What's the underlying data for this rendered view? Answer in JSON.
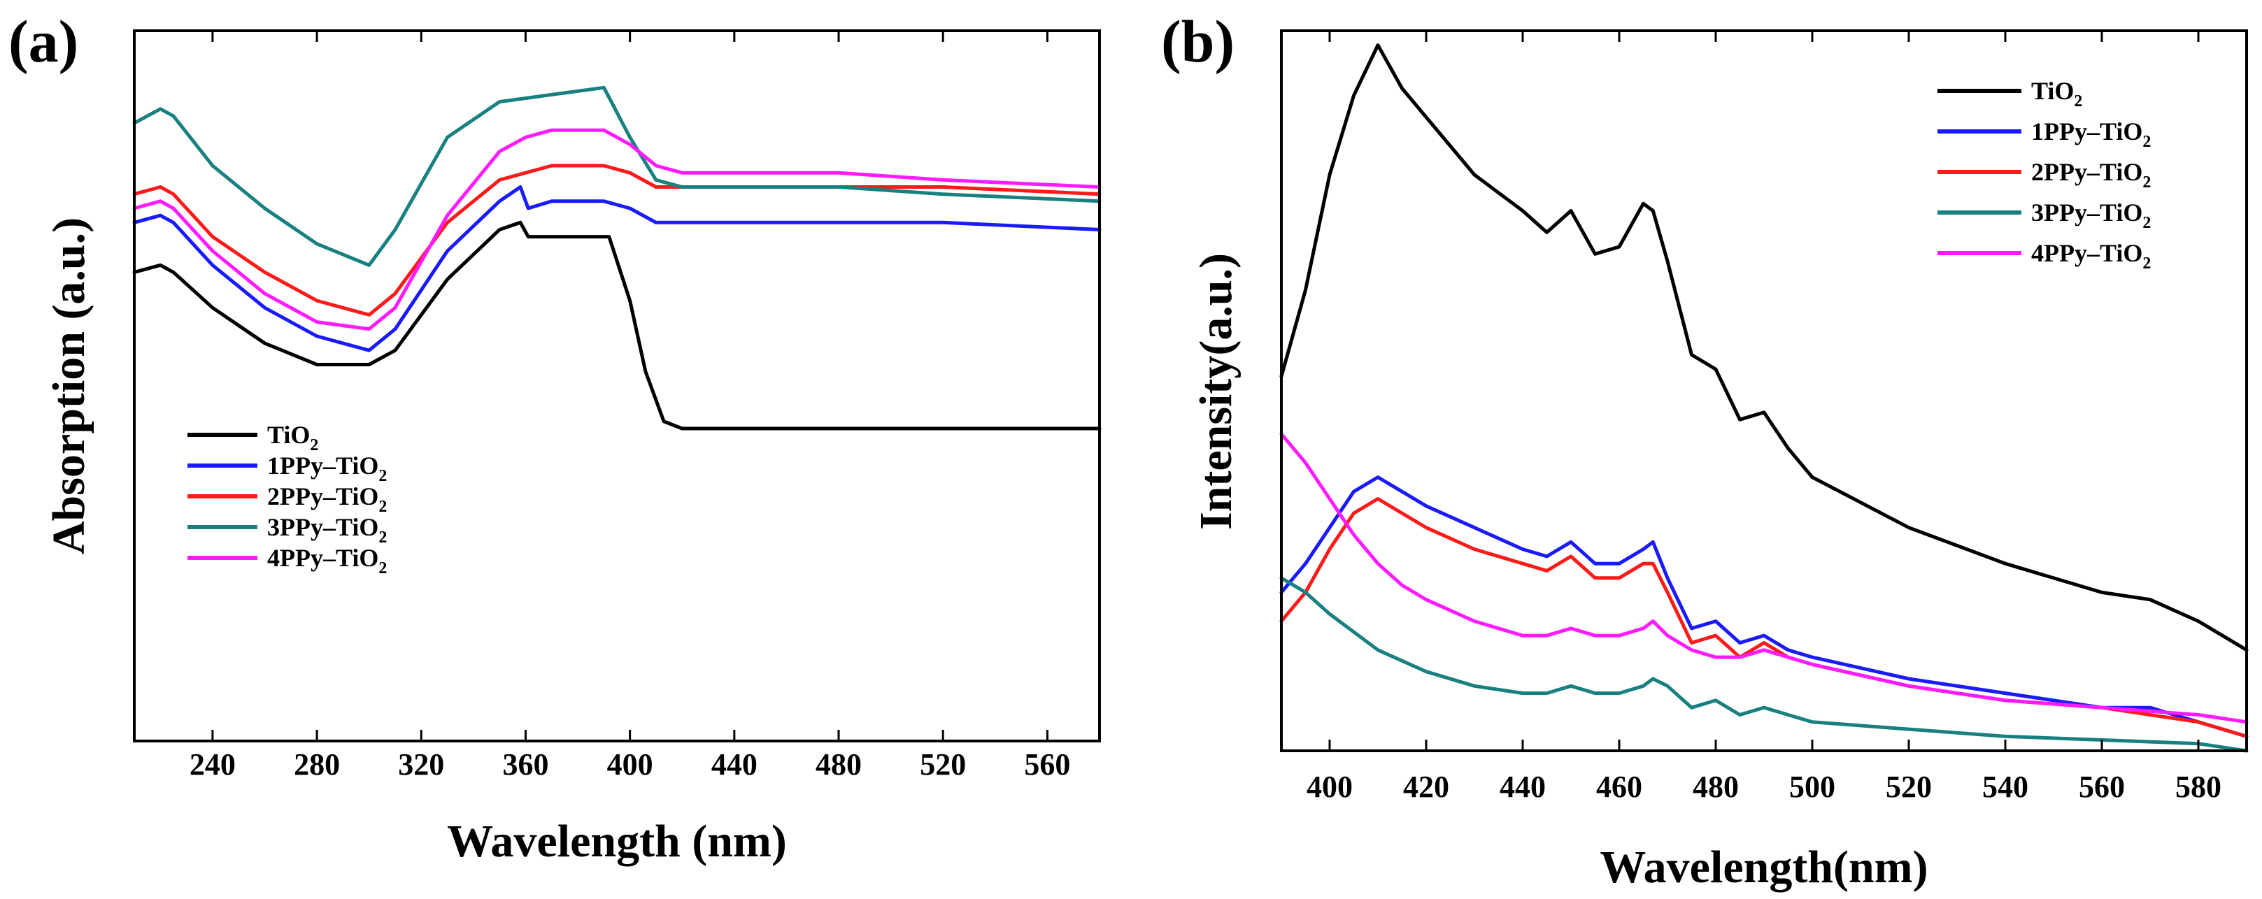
{
  "colors": {
    "black": "#000000",
    "blue": "#1a1aff",
    "red": "#ff1a1a",
    "teal": "#188080",
    "magenta": "#ff1aff"
  },
  "chart_data": [
    {
      "type": "line",
      "panel_label": "(a)",
      "title": "",
      "xlabel": "Wavelength (nm)",
      "ylabel": "Absorption (a.u.)",
      "xlim": [
        210,
        580
      ],
      "ylim": [
        0,
        1.0
      ],
      "xticks": [
        240,
        280,
        320,
        360,
        400,
        440,
        480,
        520,
        560
      ],
      "xtick_labels": [
        "240",
        "280",
        "320",
        "360",
        "400",
        "440",
        "480",
        "520",
        "560"
      ],
      "yticks_visible": false,
      "grid": false,
      "legend_position": "lower-left",
      "series": [
        {
          "name": "TiO2",
          "label_main": "TiO",
          "label_sub": "2",
          "color": "#000000",
          "x": [
            210,
            220,
            225,
            240,
            260,
            280,
            300,
            310,
            330,
            350,
            358,
            361,
            370,
            392,
            400,
            406,
            413,
            420,
            440,
            480,
            520,
            580
          ],
          "y": [
            0.66,
            0.67,
            0.66,
            0.61,
            0.56,
            0.53,
            0.53,
            0.55,
            0.65,
            0.72,
            0.73,
            0.71,
            0.71,
            0.71,
            0.62,
            0.52,
            0.45,
            0.44,
            0.44,
            0.44,
            0.44,
            0.44
          ]
        },
        {
          "name": "1PPy-TiO2",
          "label_main": "1PPy–TiO",
          "label_sub": "2",
          "color": "#1a1aff",
          "x": [
            210,
            220,
            225,
            240,
            260,
            280,
            300,
            310,
            330,
            350,
            358,
            361,
            370,
            390,
            400,
            410,
            420,
            440,
            480,
            520,
            580
          ],
          "y": [
            0.73,
            0.74,
            0.73,
            0.67,
            0.61,
            0.57,
            0.55,
            0.58,
            0.69,
            0.76,
            0.78,
            0.75,
            0.76,
            0.76,
            0.75,
            0.73,
            0.73,
            0.73,
            0.73,
            0.73,
            0.72
          ]
        },
        {
          "name": "2PPy-TiO2",
          "label_main": "2PPy–TiO",
          "label_sub": "2",
          "color": "#ff1a1a",
          "x": [
            210,
            220,
            225,
            240,
            260,
            280,
            300,
            310,
            330,
            350,
            360,
            370,
            390,
            400,
            410,
            420,
            440,
            480,
            520,
            580
          ],
          "y": [
            0.77,
            0.78,
            0.77,
            0.71,
            0.66,
            0.62,
            0.6,
            0.63,
            0.73,
            0.79,
            0.8,
            0.81,
            0.81,
            0.8,
            0.78,
            0.78,
            0.78,
            0.78,
            0.78,
            0.77
          ]
        },
        {
          "name": "3PPy-TiO2",
          "label_main": "3PPy–TiO",
          "label_sub": "2",
          "color": "#188080",
          "x": [
            210,
            220,
            225,
            240,
            260,
            280,
            300,
            310,
            330,
            350,
            370,
            390,
            400,
            410,
            420,
            440,
            480,
            520,
            580
          ],
          "y": [
            0.87,
            0.89,
            0.88,
            0.81,
            0.75,
            0.7,
            0.67,
            0.72,
            0.85,
            0.9,
            0.91,
            0.92,
            0.85,
            0.79,
            0.78,
            0.78,
            0.78,
            0.77,
            0.76
          ]
        },
        {
          "name": "4PPy-TiO2",
          "label_main": "4PPy–TiO",
          "label_sub": "2",
          "color": "#ff1aff",
          "x": [
            210,
            220,
            225,
            240,
            260,
            280,
            300,
            310,
            330,
            350,
            360,
            370,
            390,
            400,
            410,
            420,
            440,
            480,
            520,
            580
          ],
          "y": [
            0.75,
            0.76,
            0.75,
            0.69,
            0.63,
            0.59,
            0.58,
            0.61,
            0.74,
            0.83,
            0.85,
            0.86,
            0.86,
            0.84,
            0.81,
            0.8,
            0.8,
            0.8,
            0.79,
            0.78
          ]
        }
      ]
    },
    {
      "type": "line",
      "panel_label": "(b)",
      "title": "",
      "xlabel": "Wavelength(nm)",
      "ylabel": "Intensity(a.u.)",
      "xlim": [
        390,
        590
      ],
      "ylim": [
        0,
        1.0
      ],
      "xticks": [
        400,
        420,
        440,
        460,
        480,
        500,
        520,
        540,
        560,
        580
      ],
      "xtick_labels": [
        "400",
        "420",
        "440",
        "460",
        "480",
        "500",
        "520",
        "540",
        "560",
        "580"
      ],
      "yticks_visible": false,
      "grid": false,
      "legend_position": "top-right",
      "series": [
        {
          "name": "TiO2",
          "label_main": "TiO",
          "label_sub": "2",
          "color": "#000000",
          "x": [
            390,
            395,
            400,
            405,
            410,
            415,
            420,
            430,
            440,
            445,
            450,
            455,
            460,
            465,
            467,
            470,
            475,
            480,
            485,
            490,
            495,
            500,
            520,
            540,
            560,
            570,
            580,
            590
          ],
          "y": [
            0.52,
            0.64,
            0.8,
            0.91,
            0.98,
            0.92,
            0.88,
            0.8,
            0.75,
            0.72,
            0.75,
            0.69,
            0.7,
            0.76,
            0.75,
            0.68,
            0.55,
            0.53,
            0.46,
            0.47,
            0.42,
            0.38,
            0.31,
            0.26,
            0.22,
            0.21,
            0.18,
            0.14
          ]
        },
        {
          "name": "1PPy-TiO2",
          "label_main": "1PPy–TiO",
          "label_sub": "2",
          "color": "#1a1aff",
          "x": [
            390,
            395,
            400,
            405,
            410,
            415,
            420,
            430,
            440,
            445,
            450,
            455,
            460,
            465,
            467,
            470,
            475,
            480,
            485,
            490,
            495,
            500,
            520,
            540,
            560,
            570,
            580,
            590
          ],
          "y": [
            0.22,
            0.26,
            0.31,
            0.36,
            0.38,
            0.36,
            0.34,
            0.31,
            0.28,
            0.27,
            0.29,
            0.26,
            0.26,
            0.28,
            0.29,
            0.24,
            0.17,
            0.18,
            0.15,
            0.16,
            0.14,
            0.13,
            0.1,
            0.08,
            0.06,
            0.06,
            0.04,
            0.02
          ]
        },
        {
          "name": "2PPy-TiO2",
          "label_main": "2PPy–TiO",
          "label_sub": "2",
          "color": "#ff1a1a",
          "x": [
            390,
            395,
            400,
            405,
            410,
            415,
            420,
            430,
            440,
            445,
            450,
            455,
            460,
            465,
            467,
            470,
            475,
            480,
            485,
            490,
            495,
            500,
            520,
            540,
            560,
            570,
            580,
            590
          ],
          "y": [
            0.18,
            0.22,
            0.28,
            0.33,
            0.35,
            0.33,
            0.31,
            0.28,
            0.26,
            0.25,
            0.27,
            0.24,
            0.24,
            0.26,
            0.26,
            0.22,
            0.15,
            0.16,
            0.13,
            0.15,
            0.13,
            0.12,
            0.09,
            0.07,
            0.06,
            0.05,
            0.04,
            0.02
          ]
        },
        {
          "name": "3PPy-TiO2",
          "label_main": "3PPy–TiO",
          "label_sub": "2",
          "color": "#188080",
          "x": [
            390,
            395,
            400,
            410,
            420,
            430,
            440,
            445,
            450,
            455,
            460,
            465,
            467,
            470,
            475,
            480,
            485,
            490,
            495,
            500,
            520,
            540,
            560,
            580,
            590
          ],
          "y": [
            0.24,
            0.22,
            0.19,
            0.14,
            0.11,
            0.09,
            0.08,
            0.08,
            0.09,
            0.08,
            0.08,
            0.09,
            0.1,
            0.09,
            0.06,
            0.07,
            0.05,
            0.06,
            0.05,
            0.04,
            0.03,
            0.02,
            0.015,
            0.01,
            0.0
          ]
        },
        {
          "name": "4PPy-TiO2",
          "label_main": "4PPy–TiO",
          "label_sub": "2",
          "color": "#ff1aff",
          "x": [
            390,
            395,
            400,
            405,
            410,
            415,
            420,
            430,
            440,
            445,
            450,
            455,
            460,
            465,
            467,
            470,
            475,
            480,
            485,
            490,
            495,
            500,
            520,
            540,
            560,
            580,
            590
          ],
          "y": [
            0.44,
            0.4,
            0.35,
            0.3,
            0.26,
            0.23,
            0.21,
            0.18,
            0.16,
            0.16,
            0.17,
            0.16,
            0.16,
            0.17,
            0.18,
            0.16,
            0.14,
            0.13,
            0.13,
            0.14,
            0.13,
            0.12,
            0.09,
            0.07,
            0.06,
            0.05,
            0.04
          ]
        }
      ]
    }
  ]
}
